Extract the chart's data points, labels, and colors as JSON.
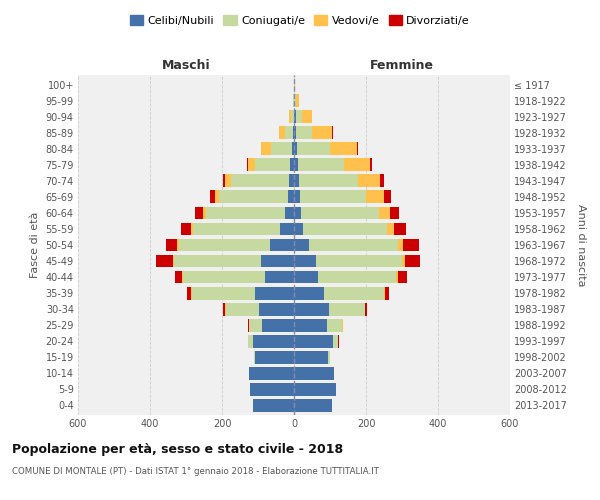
{
  "age_groups": [
    "0-4",
    "5-9",
    "10-14",
    "15-19",
    "20-24",
    "25-29",
    "30-34",
    "35-39",
    "40-44",
    "45-49",
    "50-54",
    "55-59",
    "60-64",
    "65-69",
    "70-74",
    "75-79",
    "80-84",
    "85-89",
    "90-94",
    "95-99",
    "100+"
  ],
  "birth_years": [
    "2013-2017",
    "2008-2012",
    "2003-2007",
    "1998-2002",
    "1993-1997",
    "1988-1992",
    "1983-1987",
    "1978-1982",
    "1973-1977",
    "1968-1972",
    "1963-1967",
    "1958-1962",
    "1953-1957",
    "1948-1952",
    "1943-1947",
    "1938-1942",
    "1933-1937",
    "1928-1932",
    "1923-1927",
    "1918-1922",
    "≤ 1917"
  ],
  "males": {
    "celibi": [
      115,
      122,
      125,
      108,
      115,
      88,
      98,
      108,
      80,
      92,
      68,
      40,
      24,
      16,
      14,
      10,
      5,
      3,
      1,
      0,
      0
    ],
    "coniugati": [
      0,
      0,
      0,
      2,
      12,
      38,
      92,
      175,
      228,
      242,
      252,
      240,
      220,
      192,
      162,
      98,
      58,
      22,
      6,
      2,
      0
    ],
    "vedovi": [
      0,
      0,
      0,
      0,
      0,
      0,
      1,
      2,
      2,
      3,
      4,
      5,
      8,
      12,
      15,
      20,
      28,
      18,
      8,
      2,
      0
    ],
    "divorziati": [
      0,
      0,
      0,
      0,
      1,
      2,
      5,
      12,
      20,
      45,
      32,
      28,
      22,
      12,
      6,
      2,
      0,
      0,
      0,
      0,
      0
    ]
  },
  "females": {
    "nubili": [
      105,
      118,
      112,
      95,
      108,
      92,
      98,
      82,
      68,
      62,
      42,
      24,
      20,
      16,
      14,
      12,
      8,
      5,
      5,
      0,
      0
    ],
    "coniugate": [
      0,
      0,
      0,
      4,
      14,
      42,
      98,
      168,
      215,
      238,
      248,
      235,
      215,
      185,
      165,
      128,
      92,
      45,
      18,
      5,
      0
    ],
    "vedove": [
      0,
      0,
      0,
      0,
      1,
      1,
      2,
      3,
      5,
      8,
      12,
      18,
      32,
      50,
      60,
      70,
      75,
      55,
      28,
      8,
      2
    ],
    "divorziate": [
      0,
      0,
      0,
      0,
      1,
      2,
      5,
      12,
      25,
      42,
      45,
      35,
      25,
      18,
      12,
      8,
      4,
      2,
      0,
      0,
      0
    ]
  },
  "colors": {
    "celibi": "#4472a8",
    "coniugati": "#c5d9a0",
    "vedovi": "#ffc04c",
    "divorziati": "#cc0000"
  },
  "xlim": 600,
  "title": "Popolazione per età, sesso e stato civile - 2018",
  "subtitle": "COMUNE DI MONTALE (PT) - Dati ISTAT 1° gennaio 2018 - Elaborazione TUTTITALIA.IT",
  "xlabel_left": "Maschi",
  "xlabel_right": "Femmine",
  "ylabel_left": "Fasce di età",
  "ylabel_right": "Anni di nascita",
  "legend_labels": [
    "Celibi/Nubili",
    "Coniugati/e",
    "Vedovi/e",
    "Divorziati/e"
  ],
  "bg_color": "#f0f0f0",
  "grid_color": "#cccccc"
}
